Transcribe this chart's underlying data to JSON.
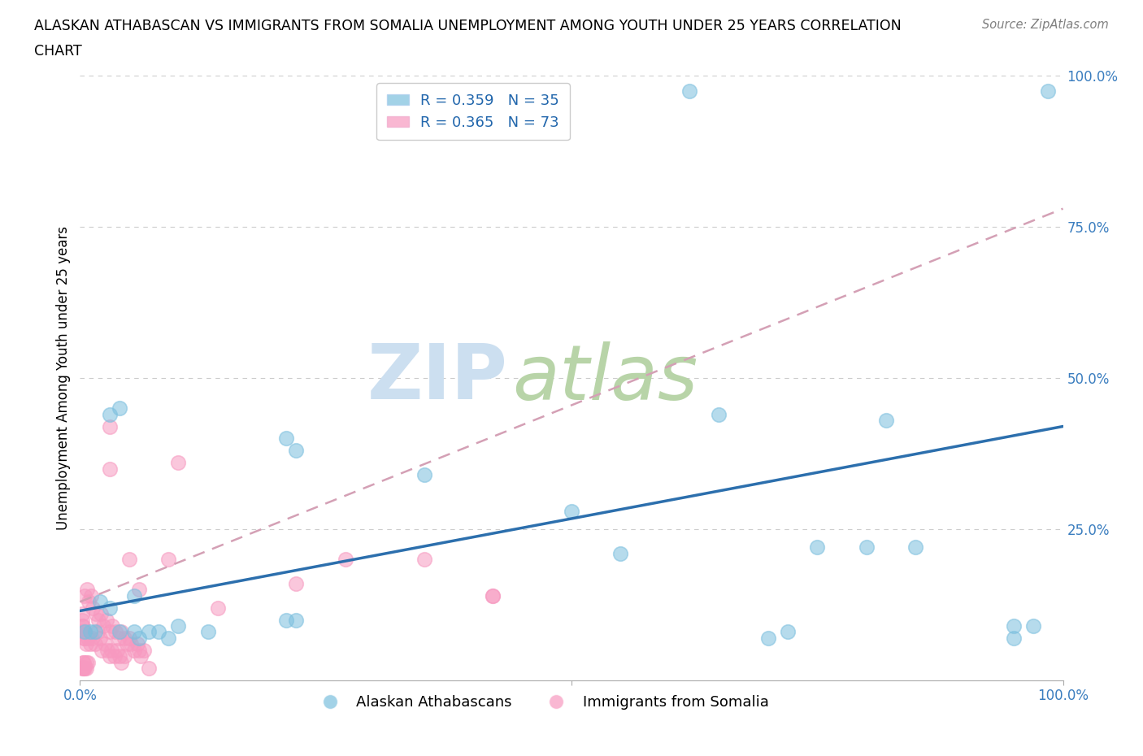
{
  "title_line1": "ALASKAN ATHABASCAN VS IMMIGRANTS FROM SOMALIA UNEMPLOYMENT AMONG YOUTH UNDER 25 YEARS CORRELATION",
  "title_line2": "CHART",
  "source_text": "Source: ZipAtlas.com",
  "ylabel": "Unemployment Among Youth under 25 years",
  "xlim": [
    0.0,
    1.0
  ],
  "ylim": [
    0.0,
    1.0
  ],
  "grid_color": "#cccccc",
  "blue_color": "#7bbfde",
  "pink_color": "#f799c0",
  "blue_line_color": "#2c6fad",
  "pink_line_color": "#d4a0b5",
  "blue_R": 0.359,
  "blue_N": 35,
  "pink_R": 0.365,
  "pink_N": 73,
  "legend_label_blue": "Alaskan Athabascans",
  "legend_label_pink": "Immigrants from Somalia",
  "watermark_zip": "ZIP",
  "watermark_atlas": "atlas",
  "watermark_color_zip": "#ccdff0",
  "watermark_color_atlas": "#b8d4a8",
  "blue_line_x0": 0.0,
  "blue_line_y0": 0.115,
  "blue_line_x1": 1.0,
  "blue_line_y1": 0.42,
  "pink_line_x0": 0.0,
  "pink_line_y0": 0.13,
  "pink_line_x1": 1.0,
  "pink_line_y1": 0.78,
  "blue_scatter_x": [
    0.62,
    0.985,
    0.03,
    0.04,
    0.055,
    0.21,
    0.22,
    0.04,
    0.055,
    0.06,
    0.21,
    0.22,
    0.35,
    0.5,
    0.55,
    0.65,
    0.8,
    0.82,
    0.7,
    0.72,
    0.95,
    0.95,
    0.02,
    0.03,
    0.005,
    0.01,
    0.015,
    0.07,
    0.08,
    0.09,
    0.1,
    0.13,
    0.75,
    0.85,
    0.97
  ],
  "blue_scatter_y": [
    0.975,
    0.975,
    0.44,
    0.45,
    0.14,
    0.4,
    0.38,
    0.08,
    0.08,
    0.07,
    0.1,
    0.1,
    0.34,
    0.28,
    0.21,
    0.44,
    0.22,
    0.43,
    0.07,
    0.08,
    0.07,
    0.09,
    0.13,
    0.12,
    0.08,
    0.08,
    0.08,
    0.08,
    0.08,
    0.07,
    0.09,
    0.08,
    0.22,
    0.22,
    0.09
  ],
  "pink_scatter_x": [
    0.005,
    0.008,
    0.01,
    0.012,
    0.015,
    0.018,
    0.02,
    0.022,
    0.025,
    0.028,
    0.03,
    0.032,
    0.035,
    0.038,
    0.04,
    0.042,
    0.045,
    0.005,
    0.007,
    0.009,
    0.011,
    0.013,
    0.016,
    0.019,
    0.021,
    0.024,
    0.027,
    0.03,
    0.033,
    0.036,
    0.039,
    0.042,
    0.045,
    0.048,
    0.05,
    0.052,
    0.055,
    0.058,
    0.06,
    0.062,
    0.065,
    0.003,
    0.004,
    0.006,
    0.008,
    0.002,
    0.003,
    0.004,
    0.005,
    0.006,
    0.07,
    0.03,
    0.03,
    0.05,
    0.06,
    0.09,
    0.1,
    0.14,
    0.22,
    0.27,
    0.35,
    0.42,
    0.42,
    0.002,
    0.002,
    0.002,
    0.002,
    0.003,
    0.003,
    0.004,
    0.004,
    0.005,
    0.006
  ],
  "pink_scatter_y": [
    0.08,
    0.07,
    0.06,
    0.07,
    0.06,
    0.08,
    0.07,
    0.05,
    0.06,
    0.05,
    0.04,
    0.05,
    0.04,
    0.05,
    0.04,
    0.03,
    0.04,
    0.14,
    0.15,
    0.13,
    0.14,
    0.12,
    0.11,
    0.1,
    0.11,
    0.09,
    0.1,
    0.08,
    0.09,
    0.08,
    0.07,
    0.08,
    0.07,
    0.06,
    0.07,
    0.06,
    0.05,
    0.06,
    0.05,
    0.04,
    0.05,
    0.03,
    0.03,
    0.03,
    0.03,
    0.02,
    0.02,
    0.02,
    0.02,
    0.02,
    0.02,
    0.42,
    0.35,
    0.2,
    0.15,
    0.2,
    0.36,
    0.12,
    0.16,
    0.2,
    0.2,
    0.14,
    0.14,
    0.08,
    0.09,
    0.1,
    0.11,
    0.08,
    0.09,
    0.07,
    0.08,
    0.07,
    0.06
  ]
}
